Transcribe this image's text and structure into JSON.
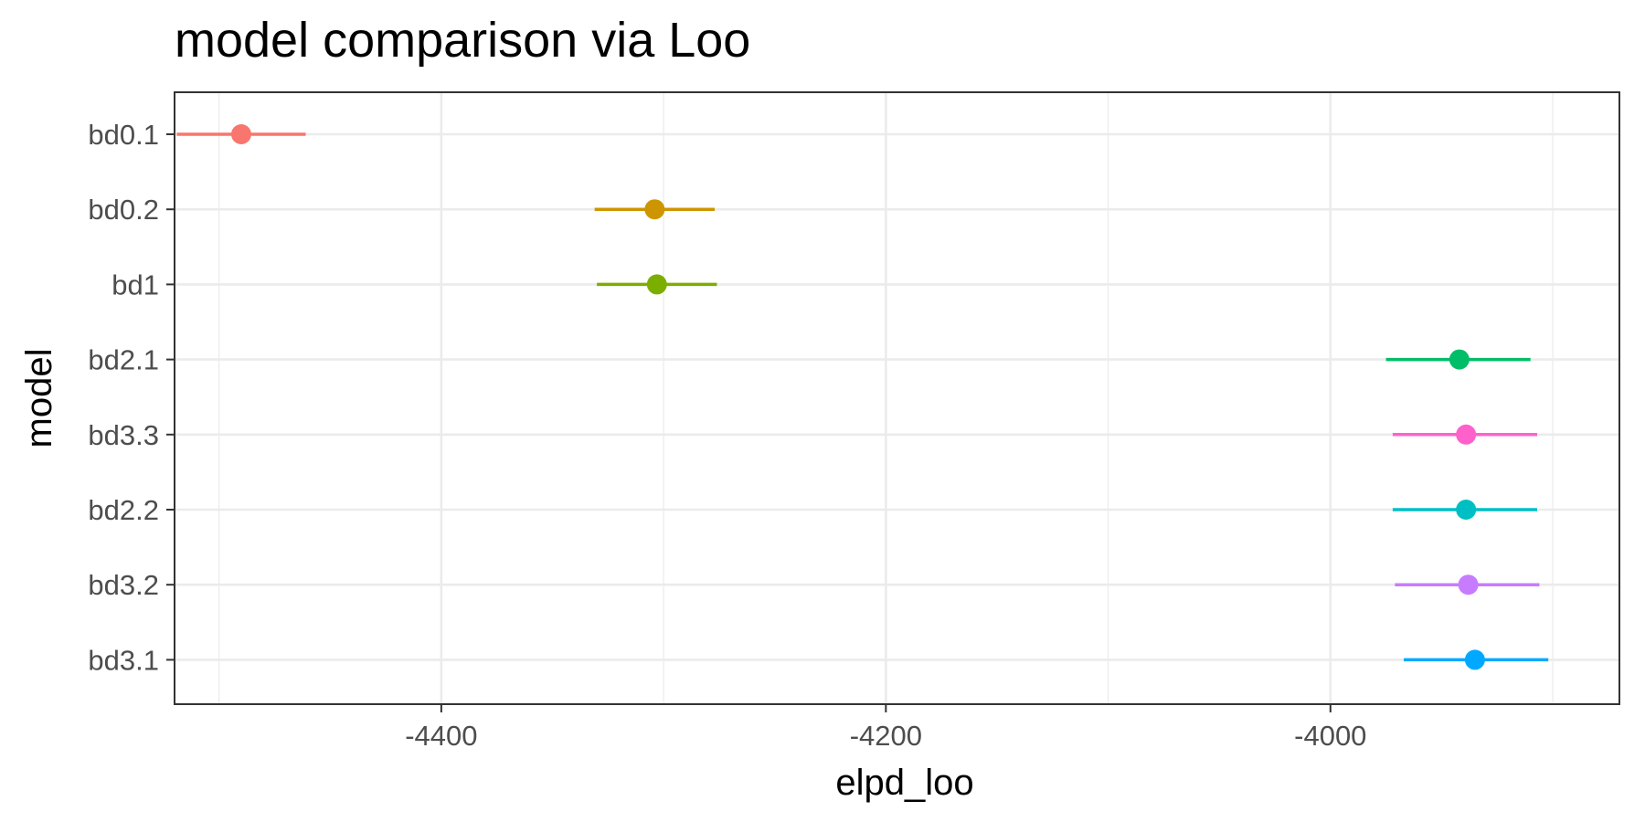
{
  "chart_data": {
    "type": "scatter",
    "subtype": "point-interval",
    "title": "model comparison via Loo",
    "xlabel": "elpd_loo",
    "ylabel": "model",
    "xlim": [
      -4520,
      -3870
    ],
    "x_ticks": [
      -4400,
      -4200,
      -4000
    ],
    "x_tick_labels": [
      "-4400",
      "-4200",
      "-4000"
    ],
    "grid": true,
    "legend": "none",
    "series": [
      {
        "name": "bd0.1",
        "x": -4490,
        "lower": -4519,
        "upper": -4461,
        "color": "#F8766D"
      },
      {
        "name": "bd0.2",
        "x": -4304,
        "lower": -4331,
        "upper": -4277,
        "color": "#CD9600"
      },
      {
        "name": "bd1",
        "x": -4303,
        "lower": -4330,
        "upper": -4276,
        "color": "#7CAE00"
      },
      {
        "name": "bd2.1",
        "x": -3942,
        "lower": -3975,
        "upper": -3910,
        "color": "#00BE67"
      },
      {
        "name": "bd3.3",
        "x": -3939,
        "lower": -3972,
        "upper": -3907,
        "color": "#FF61CC"
      },
      {
        "name": "bd2.2",
        "x": -3939,
        "lower": -3972,
        "upper": -3907,
        "color": "#00BFC4"
      },
      {
        "name": "bd3.2",
        "x": -3938,
        "lower": -3971,
        "upper": -3906,
        "color": "#C77CFF"
      },
      {
        "name": "bd3.1",
        "x": -3935,
        "lower": -3967,
        "upper": -3902,
        "color": "#00A9FF"
      }
    ]
  }
}
